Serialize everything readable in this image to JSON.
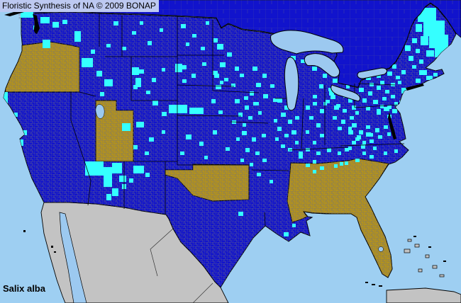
{
  "header": {
    "title": "Floristic Synthesis of NA © 2009 BONAP"
  },
  "map": {
    "species_label": "Salix alba",
    "colors": {
      "ocean": "#9ECFF2",
      "lake": "#9CC9F0",
      "state_present": "#1113CC",
      "county_present": "#35FFFF",
      "state_exotic": "#B2921E",
      "unmapped_land": "#C3C3C3",
      "boundary": "#000000",
      "county_line": "#6E6E7E",
      "titlebar_bg": "#BDC9F1",
      "text": "#000000"
    },
    "exotic_states": [
      "Oregon",
      "Utah",
      "Oklahoma",
      "Mississippi",
      "Alabama",
      "Georgia",
      "South Carolina",
      "Florida"
    ],
    "county_records": [
      [
        57,
        24,
        13,
        9
      ],
      [
        74,
        31,
        9,
        8
      ],
      [
        60,
        56,
        11,
        12
      ],
      [
        105,
        44,
        9,
        15
      ],
      [
        88,
        28,
        7,
        6
      ],
      [
        47,
        36,
        6,
        6
      ],
      [
        115,
        82,
        16,
        13
      ],
      [
        136,
        100,
        8,
        8
      ],
      [
        147,
        112,
        12,
        10
      ],
      [
        141,
        130,
        6,
        6
      ],
      [
        128,
        70,
        6,
        6
      ],
      [
        150,
        62,
        6,
        5
      ],
      [
        160,
        30,
        7,
        6
      ],
      [
        186,
        44,
        6,
        5
      ],
      [
        208,
        58,
        6,
        6
      ],
      [
        172,
        66,
        6,
        5
      ],
      [
        225,
        40,
        5,
        5
      ],
      [
        197,
        30,
        5,
        5
      ],
      [
        196,
        98,
        7,
        6
      ],
      [
        214,
        110,
        6,
        6
      ],
      [
        188,
        120,
        6,
        6
      ],
      [
        228,
        96,
        5,
        5
      ],
      [
        206,
        128,
        6,
        5
      ],
      [
        255,
        34,
        7,
        6
      ],
      [
        271,
        48,
        6,
        5
      ],
      [
        290,
        30,
        5,
        5
      ],
      [
        301,
        54,
        6,
        6
      ],
      [
        283,
        66,
        6,
        5
      ],
      [
        262,
        60,
        5,
        5
      ],
      [
        255,
        92,
        8,
        6
      ],
      [
        270,
        104,
        6,
        6
      ],
      [
        285,
        88,
        6,
        5
      ],
      [
        300,
        100,
        7,
        6
      ],
      [
        257,
        112,
        6,
        5
      ],
      [
        310,
        114,
        5,
        5
      ],
      [
        186,
        95,
        10,
        11
      ],
      [
        191,
        110,
        8,
        13
      ],
      [
        247,
        90,
        10,
        12
      ],
      [
        238,
        148,
        26,
        12
      ],
      [
        267,
        152,
        20,
        9
      ],
      [
        215,
        142,
        8,
        7
      ],
      [
        228,
        158,
        7,
        6
      ],
      [
        298,
        140,
        6,
        6
      ],
      [
        308,
        156,
        6,
        5
      ],
      [
        262,
        190,
        8,
        7
      ],
      [
        281,
        200,
        6,
        6
      ],
      [
        300,
        184,
        6,
        6
      ],
      [
        318,
        208,
        6,
        5
      ],
      [
        254,
        214,
        6,
        5
      ],
      [
        333,
        194,
        5,
        5
      ],
      [
        288,
        220,
        5,
        5
      ],
      [
        192,
        172,
        11,
        8
      ],
      [
        210,
        194,
        7,
        6
      ],
      [
        188,
        205,
        6,
        6
      ],
      [
        228,
        184,
        5,
        5
      ],
      [
        172,
        174,
        12,
        11
      ],
      [
        204,
        214,
        6,
        5
      ],
      [
        120,
        228,
        26,
        20
      ],
      [
        146,
        236,
        12,
        28
      ],
      [
        158,
        230,
        14,
        15
      ],
      [
        168,
        248,
        10,
        9
      ],
      [
        158,
        266,
        9,
        11
      ],
      [
        150,
        274,
        7,
        9
      ],
      [
        172,
        260,
        6,
        7
      ],
      [
        188,
        234,
        15,
        11
      ],
      [
        182,
        252,
        6,
        6
      ],
      [
        205,
        244,
        6,
        6
      ],
      [
        230,
        326,
        11,
        11
      ],
      [
        239,
        340,
        8,
        8
      ],
      [
        336,
        299,
        7,
        6
      ],
      [
        306,
        62,
        9,
        8
      ],
      [
        320,
        74,
        7,
        6
      ],
      [
        310,
        88,
        8,
        7
      ],
      [
        331,
        94,
        6,
        6
      ],
      [
        302,
        104,
        7,
        6
      ],
      [
        316,
        110,
        6,
        5
      ],
      [
        304,
        120,
        8,
        6
      ],
      [
        326,
        118,
        6,
        5
      ],
      [
        338,
        104,
        6,
        5
      ],
      [
        356,
        94,
        7,
        6
      ],
      [
        370,
        104,
        6,
        6
      ],
      [
        361,
        117,
        7,
        6
      ],
      [
        381,
        119,
        6,
        5
      ],
      [
        352,
        129,
        6,
        6
      ],
      [
        371,
        133,
        7,
        6
      ],
      [
        385,
        139,
        6,
        5
      ],
      [
        357,
        144,
        6,
        5
      ],
      [
        344,
        136,
        6,
        5
      ],
      [
        410,
        79,
        7,
        6
      ],
      [
        424,
        84,
        6,
        5
      ],
      [
        440,
        94,
        7,
        6
      ],
      [
        455,
        104,
        6,
        6
      ],
      [
        469,
        111,
        7,
        6
      ],
      [
        450,
        119,
        6,
        6
      ],
      [
        464,
        129,
        7,
        6
      ],
      [
        477,
        124,
        5,
        5
      ],
      [
        441,
        134,
        6,
        5
      ],
      [
        459,
        141,
        6,
        5
      ],
      [
        474,
        147,
        6,
        5
      ],
      [
        484,
        133,
        5,
        5
      ],
      [
        331,
        140,
        7,
        6
      ],
      [
        345,
        149,
        6,
        6
      ],
      [
        359,
        144,
        6,
        5
      ],
      [
        336,
        159,
        6,
        6
      ],
      [
        350,
        164,
        6,
        5
      ],
      [
        364,
        157,
        5,
        5
      ],
      [
        327,
        170,
        6,
        5
      ],
      [
        342,
        174,
        5,
        5
      ],
      [
        341,
        185,
        7,
        6
      ],
      [
        355,
        194,
        6,
        6
      ],
      [
        369,
        189,
        6,
        5
      ],
      [
        346,
        209,
        6,
        6
      ],
      [
        360,
        214,
        6,
        5
      ],
      [
        339,
        224,
        5,
        5
      ],
      [
        370,
        224,
        6,
        5
      ],
      [
        352,
        230,
        5,
        5
      ],
      [
        362,
        244,
        6,
        5
      ],
      [
        380,
        254,
        5,
        5
      ],
      [
        400,
        328,
        7,
        6
      ],
      [
        412,
        316,
        5,
        5
      ],
      [
        391,
        139,
        7,
        6
      ],
      [
        401,
        149,
        6,
        6
      ],
      [
        411,
        144,
        6,
        5
      ],
      [
        396,
        159,
        7,
        6
      ],
      [
        406,
        169,
        6,
        6
      ],
      [
        416,
        164,
        6,
        5
      ],
      [
        391,
        179,
        6,
        6
      ],
      [
        401,
        189,
        6,
        5
      ],
      [
        411,
        184,
        7,
        6
      ],
      [
        396,
        204,
        6,
        5
      ],
      [
        406,
        209,
        6,
        5
      ],
      [
        416,
        199,
        5,
        5
      ],
      [
        421,
        214,
        6,
        5
      ],
      [
        386,
        168,
        5,
        5
      ],
      [
        388,
        194,
        5,
        5
      ],
      [
        431,
        149,
        6,
        6
      ],
      [
        441,
        144,
        6,
        5
      ],
      [
        451,
        154,
        6,
        6
      ],
      [
        436,
        164,
        6,
        5
      ],
      [
        446,
        174,
        6,
        6
      ],
      [
        431,
        184,
        5,
        5
      ],
      [
        451,
        189,
        6,
        5
      ],
      [
        441,
        199,
        5,
        5
      ],
      [
        456,
        144,
        5,
        5
      ],
      [
        466,
        134,
        7,
        6
      ],
      [
        479,
        129,
        6,
        6
      ],
      [
        491,
        139,
        6,
        6
      ],
      [
        471,
        149,
        7,
        6
      ],
      [
        483,
        154,
        6,
        5
      ],
      [
        496,
        149,
        6,
        6
      ],
      [
        469,
        164,
        6,
        5
      ],
      [
        481,
        169,
        6,
        6
      ],
      [
        493,
        164,
        6,
        5
      ],
      [
        501,
        157,
        5,
        5
      ],
      [
        476,
        179,
        6,
        5
      ],
      [
        491,
        179,
        5,
        5
      ],
      [
        463,
        124,
        5,
        5
      ],
      [
        488,
        120,
        5,
        5
      ],
      [
        431,
        209,
        6,
        5
      ],
      [
        446,
        214,
        6,
        5
      ],
      [
        461,
        209,
        6,
        6
      ],
      [
        476,
        214,
        5,
        5
      ],
      [
        421,
        219,
        6,
        5
      ],
      [
        491,
        207,
        5,
        5
      ],
      [
        441,
        226,
        5,
        5
      ],
      [
        431,
        231,
        6,
        5
      ],
      [
        451,
        235,
        6,
        5
      ],
      [
        471,
        232,
        5,
        5
      ],
      [
        486,
        228,
        5,
        5
      ],
      [
        441,
        240,
        5,
        5
      ],
      [
        496,
        174,
        7,
        6
      ],
      [
        506,
        184,
        6,
        6
      ],
      [
        516,
        177,
        6,
        5
      ],
      [
        501,
        194,
        6,
        5
      ],
      [
        511,
        199,
        5,
        5
      ],
      [
        521,
        188,
        5,
        5
      ],
      [
        506,
        124,
        7,
        6
      ],
      [
        519,
        129,
        6,
        6
      ],
      [
        531,
        121,
        6,
        6
      ],
      [
        543,
        127,
        6,
        5
      ],
      [
        511,
        139,
        6,
        6
      ],
      [
        526,
        141,
        7,
        6
      ],
      [
        539,
        137,
        6,
        5
      ],
      [
        551,
        134,
        6,
        5
      ],
      [
        516,
        151,
        6,
        5
      ],
      [
        531,
        154,
        6,
        6
      ],
      [
        546,
        149,
        6,
        5
      ],
      [
        556,
        144,
        5,
        5
      ],
      [
        501,
        133,
        5,
        5
      ],
      [
        511,
        94,
        8,
        7
      ],
      [
        526,
        89,
        7,
        6
      ],
      [
        541,
        84,
        7,
        6
      ],
      [
        553,
        91,
        6,
        6
      ],
      [
        516,
        107,
        7,
        6
      ],
      [
        531,
        104,
        6,
        6
      ],
      [
        546,
        101,
        7,
        6
      ],
      [
        558,
        107,
        6,
        5
      ],
      [
        521,
        117,
        6,
        5
      ],
      [
        536,
        114,
        6,
        6
      ],
      [
        551,
        117,
        6,
        5
      ],
      [
        561,
        114,
        5,
        5
      ],
      [
        566,
        99,
        6,
        6
      ],
      [
        506,
        104,
        5,
        5
      ],
      [
        571,
        64,
        8,
        8
      ],
      [
        581,
        54,
        7,
        7
      ],
      [
        576,
        79,
        7,
        7
      ],
      [
        586,
        69,
        6,
        6
      ],
      [
        591,
        84,
        6,
        6
      ],
      [
        581,
        92,
        6,
        5
      ],
      [
        589,
        11,
        26,
        20
      ],
      [
        597,
        29,
        30,
        22
      ],
      [
        605,
        49,
        27,
        19
      ],
      [
        593,
        51,
        11,
        13
      ],
      [
        613,
        68,
        19,
        13
      ],
      [
        601,
        71,
        11,
        9
      ],
      [
        586,
        34,
        9,
        11
      ],
      [
        591,
        99,
        11,
        7
      ],
      [
        601,
        107,
        9,
        6
      ],
      [
        586,
        111,
        7,
        6
      ],
      [
        596,
        119,
        8,
        6
      ],
      [
        609,
        114,
        6,
        5
      ],
      [
        581,
        124,
        6,
        5
      ],
      [
        611,
        103,
        6,
        5
      ],
      [
        566,
        124,
        8,
        8
      ],
      [
        571,
        134,
        7,
        8
      ],
      [
        563,
        142,
        6,
        6
      ],
      [
        541,
        151,
        8,
        6
      ],
      [
        553,
        154,
        7,
        6
      ],
      [
        531,
        157,
        6,
        5
      ],
      [
        546,
        162,
        6,
        5
      ],
      [
        559,
        149,
        5,
        5
      ],
      [
        536,
        148,
        5,
        5
      ],
      [
        491,
        184,
        7,
        6
      ],
      [
        503,
        191,
        6,
        6
      ],
      [
        516,
        187,
        7,
        6
      ],
      [
        529,
        181,
        6,
        6
      ],
      [
        541,
        177,
        6,
        5
      ],
      [
        496,
        199,
        6,
        5
      ],
      [
        509,
        204,
        6,
        6
      ],
      [
        521,
        197,
        6,
        5
      ],
      [
        533,
        191,
        6,
        5
      ],
      [
        546,
        187,
        5,
        5
      ],
      [
        486,
        209,
        6,
        5
      ],
      [
        511,
        214,
        5,
        5
      ],
      [
        526,
        207,
        5,
        5
      ],
      [
        501,
        224,
        6,
        5
      ],
      [
        521,
        219,
        6,
        5
      ],
      [
        541,
        214,
        5,
        5
      ],
      [
        556,
        211,
        5,
        5
      ],
      [
        479,
        229,
        5,
        5
      ],
      [
        3,
        130,
        8,
        16
      ],
      [
        30,
        184,
        8,
        7
      ],
      [
        27,
        197,
        6,
        9
      ],
      [
        20,
        159,
        5,
        6
      ],
      [
        29,
        17,
        18,
        8
      ]
    ]
  }
}
